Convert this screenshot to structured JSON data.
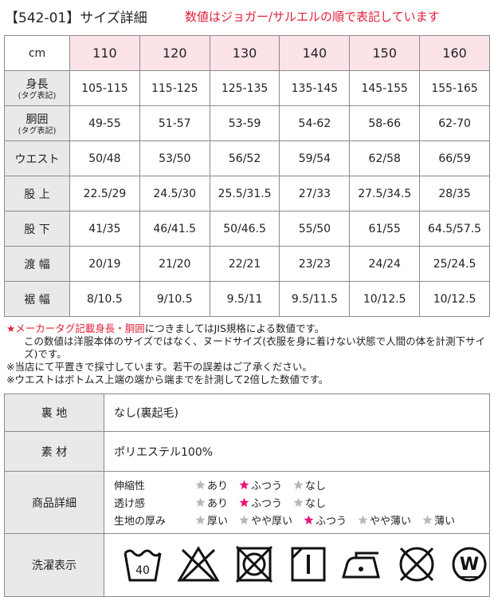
{
  "header": {
    "title": "【542-01】サイズ詳細",
    "note": "数値はジョガー/サルエルの順で表記しています"
  },
  "size_table": {
    "corner": "cm",
    "sizes": [
      "110",
      "120",
      "130",
      "140",
      "150",
      "160"
    ],
    "rows": [
      {
        "label": "身長",
        "sublabel": "(タグ表記)",
        "values": [
          "105-115",
          "115-125",
          "125-135",
          "135-145",
          "145-155",
          "155-165"
        ]
      },
      {
        "label": "胴囲",
        "sublabel": "(タグ表記)",
        "values": [
          "49-55",
          "51-57",
          "53-59",
          "54-62",
          "58-66",
          "62-70"
        ]
      },
      {
        "label": "ウエスト",
        "values": [
          "50/48",
          "53/50",
          "56/52",
          "59/54",
          "62/58",
          "66/59"
        ]
      },
      {
        "label": "股 上",
        "values": [
          "22.5/29",
          "24.5/30",
          "25.5/31.5",
          "27/33",
          "27.5/34.5",
          "28/35"
        ]
      },
      {
        "label": "股 下",
        "values": [
          "41/35",
          "46/41.5",
          "50/46.5",
          "55/50",
          "61/55",
          "64.5/57.5"
        ]
      },
      {
        "label": "渡 幅",
        "values": [
          "20/19",
          "21/20",
          "22/21",
          "23/23",
          "24/24",
          "25/24.5"
        ]
      },
      {
        "label": "裾 幅",
        "values": [
          "8/10.5",
          "9/10.5",
          "9.5/11",
          "9.5/11.5",
          "10/12.5",
          "10/12.5"
        ]
      }
    ]
  },
  "notes": [
    {
      "highlight": "★メーカータグ記載身長・胴囲",
      "text": "につきましてはJIS規格による数値です。"
    },
    {
      "text": "この数値は洋服本体のサイズではなく、ヌードサイズ(衣服を身に着けない状態で人間の体を計測下サイズ)です。"
    },
    {
      "text": "※当店にて平置きで採寸しています。若干の誤差はご了承ください。"
    },
    {
      "text": "※ウエストはボトムス上端の端から端までを計測して2倍した数値です。"
    }
  ],
  "spec_table": {
    "lining": {
      "label": "裏 地",
      "value": "なし(裏起毛)"
    },
    "material": {
      "label": "素 材",
      "value": "ポリエステル100%"
    },
    "details": {
      "label": "商品詳細",
      "items": [
        {
          "name": "伸縮性",
          "options": [
            {
              "text": "あり",
              "selected": false
            },
            {
              "text": "ふつう",
              "selected": true
            },
            {
              "text": "なし",
              "selected": false
            }
          ]
        },
        {
          "name": "透け感",
          "options": [
            {
              "text": "あり",
              "selected": false
            },
            {
              "text": "ふつう",
              "selected": true
            },
            {
              "text": "なし",
              "selected": false
            }
          ]
        },
        {
          "name": "生地の厚み",
          "options": [
            {
              "text": "厚い",
              "selected": false
            },
            {
              "text": "やや厚い",
              "selected": false
            },
            {
              "text": "ふつう",
              "selected": true
            },
            {
              "text": "やや薄い",
              "selected": false
            },
            {
              "text": "薄い",
              "selected": false
            }
          ]
        }
      ]
    },
    "care": {
      "label": "洗濯表示",
      "wash_temp": "40",
      "wet_clean": "W"
    }
  }
}
